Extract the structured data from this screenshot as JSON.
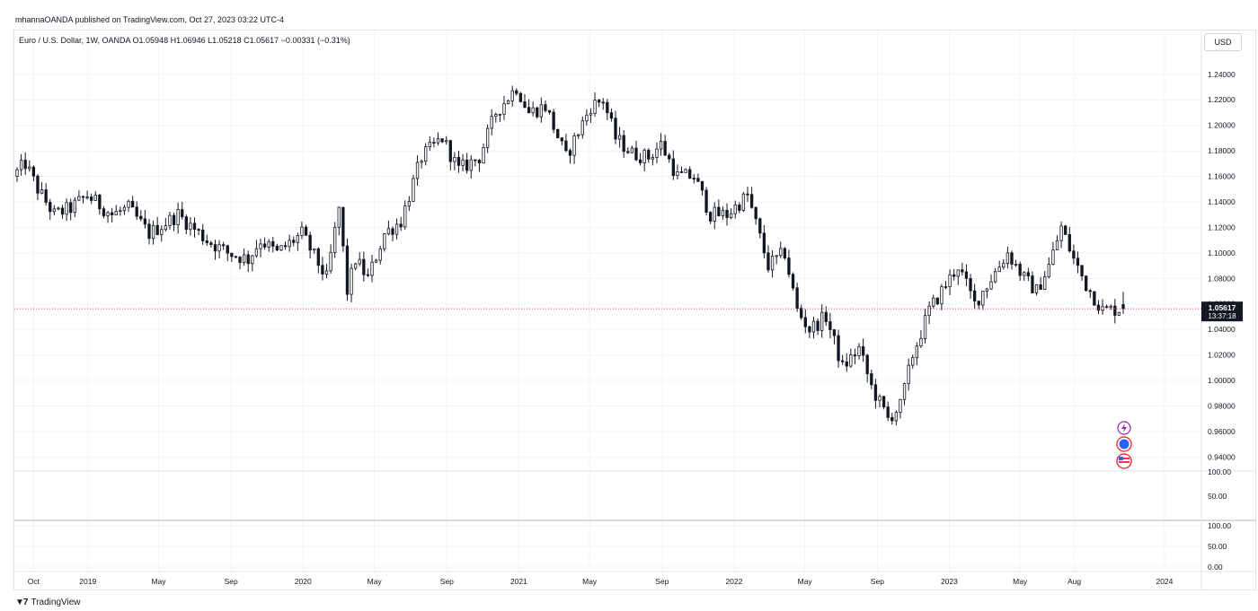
{
  "header": {
    "publisher": "mhannaOANDA published on TradingView.com, Oct 27, 2023 03:22 UTC-4"
  },
  "legend": {
    "text": "Euro / U.S. Dollar, 1W, OANDA  O1.05948  H1.06946  L1.05218  C1.05617  −0.00331 (−0.31%)"
  },
  "toolbar": {
    "currency_label": "USD"
  },
  "price_label": {
    "value": "1.05617",
    "countdown": "13:37:18"
  },
  "footer": {
    "brand": "TradingView"
  },
  "event_icons": [
    "lightning-icon",
    "eu-flag-icon",
    "us-flag-icon"
  ],
  "colors": {
    "candle": "#131722",
    "grid": "#f0f3fa",
    "price_line": "#f23645",
    "price_label_bg": "#131722",
    "event_lightning": "#9c27b0",
    "event_flag_ring": "#f23645",
    "event_flag_blue": "#2962ff"
  },
  "chart_data": [
    {
      "type": "candlestick",
      "title": "",
      "x_ticks": [
        "Oct",
        "2019",
        "May",
        "Sep",
        "2020",
        "May",
        "Sep",
        "2021",
        "May",
        "Sep",
        "2022",
        "May",
        "Sep",
        "2023",
        "May",
        "Aug",
        "2024"
      ],
      "x_tick_dates": [
        "2018-10",
        "2019-01",
        "2019-05",
        "2019-09",
        "2020-01",
        "2020-05",
        "2020-09",
        "2021-01",
        "2021-05",
        "2021-09",
        "2022-01",
        "2022-05",
        "2022-09",
        "2023-01",
        "2023-05",
        "2023-08",
        "2024-01"
      ],
      "y_ticks": [
        "1.24000",
        "1.22000",
        "1.20000",
        "1.18000",
        "1.16000",
        "1.14000",
        "1.12000",
        "1.10000",
        "1.08000",
        "1.06000",
        "1.04000",
        "1.02000",
        "1.00000",
        "0.98000",
        "0.96000",
        "0.94000"
      ],
      "ylim": [
        0.929,
        1.256
      ],
      "grid": true,
      "last_price": 1.05617,
      "anchors": [
        [
          "2018-09-03",
          1.16
        ],
        [
          "2018-09-24",
          1.17
        ],
        [
          "2018-10-15",
          1.15
        ],
        [
          "2018-11-12",
          1.13
        ],
        [
          "2018-12-10",
          1.135
        ],
        [
          "2019-01-07",
          1.145
        ],
        [
          "2019-02-18",
          1.13
        ],
        [
          "2019-03-18",
          1.135
        ],
        [
          "2019-04-22",
          1.115
        ],
        [
          "2019-06-10",
          1.13
        ],
        [
          "2019-07-29",
          1.11
        ],
        [
          "2019-09-02",
          1.1
        ],
        [
          "2019-10-07",
          1.095
        ],
        [
          "2019-10-28",
          1.11
        ],
        [
          "2019-11-25",
          1.1
        ],
        [
          "2020-01-06",
          1.115
        ],
        [
          "2020-02-17",
          1.08
        ],
        [
          "2020-03-09",
          1.135
        ],
        [
          "2020-03-23",
          1.07
        ],
        [
          "2020-04-06",
          1.095
        ],
        [
          "2020-04-27",
          1.08
        ],
        [
          "2020-05-25",
          1.115
        ],
        [
          "2020-06-22",
          1.125
        ],
        [
          "2020-07-27",
          1.175
        ],
        [
          "2020-08-31",
          1.19
        ],
        [
          "2020-09-28",
          1.165
        ],
        [
          "2020-11-02",
          1.175
        ],
        [
          "2020-11-30",
          1.21
        ],
        [
          "2021-01-04",
          1.23
        ],
        [
          "2021-01-25",
          1.21
        ],
        [
          "2021-02-22",
          1.215
        ],
        [
          "2021-03-29",
          1.175
        ],
        [
          "2021-05-10",
          1.215
        ],
        [
          "2021-05-31",
          1.22
        ],
        [
          "2021-06-21",
          1.19
        ],
        [
          "2021-07-19",
          1.178
        ],
        [
          "2021-08-16",
          1.175
        ],
        [
          "2021-09-06",
          1.185
        ],
        [
          "2021-10-04",
          1.16
        ],
        [
          "2021-11-01",
          1.16
        ],
        [
          "2021-11-29",
          1.13
        ],
        [
          "2021-12-27",
          1.13
        ],
        [
          "2022-01-31",
          1.145
        ],
        [
          "2022-03-07",
          1.09
        ],
        [
          "2022-04-04",
          1.1
        ],
        [
          "2022-04-25",
          1.055
        ],
        [
          "2022-05-16",
          1.04
        ],
        [
          "2022-06-13",
          1.05
        ],
        [
          "2022-07-11",
          1.01
        ],
        [
          "2022-08-08",
          1.025
        ],
        [
          "2022-08-29",
          0.995
        ],
        [
          "2022-09-26",
          0.97
        ],
        [
          "2022-10-17",
          0.98
        ],
        [
          "2022-11-07",
          1.02
        ],
        [
          "2022-12-05",
          1.055
        ],
        [
          "2023-01-23",
          1.09
        ],
        [
          "2023-02-20",
          1.06
        ],
        [
          "2023-03-20",
          1.08
        ],
        [
          "2023-04-17",
          1.1
        ],
        [
          "2023-05-15",
          1.08
        ],
        [
          "2023-06-05",
          1.07
        ],
        [
          "2023-06-26",
          1.09
        ],
        [
          "2023-07-17",
          1.12
        ],
        [
          "2023-08-07",
          1.095
        ],
        [
          "2023-08-28",
          1.075
        ],
        [
          "2023-09-25",
          1.055
        ],
        [
          "2023-10-23",
          1.056
        ]
      ],
      "panes": [
        {
          "y_ticks": [
            "100.00",
            "50.00"
          ]
        },
        {
          "y_ticks": [
            "100.00",
            "50.00",
            "0.00"
          ]
        }
      ]
    }
  ]
}
